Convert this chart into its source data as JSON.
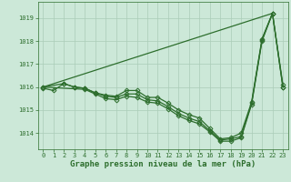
{
  "background_color": "#cce8d8",
  "grid_color": "#aaccb8",
  "line_color": "#2d6e2d",
  "title": "Graphe pression niveau de la mer (hPa)",
  "xlim": [
    -0.5,
    23.5
  ],
  "ylim": [
    1013.3,
    1019.7
  ],
  "yticks": [
    1014,
    1015,
    1016,
    1017,
    1018,
    1019
  ],
  "xticks": [
    0,
    1,
    2,
    3,
    4,
    5,
    6,
    7,
    8,
    9,
    10,
    11,
    12,
    13,
    14,
    15,
    16,
    17,
    18,
    19,
    20,
    21,
    22,
    23
  ],
  "marker_size": 2.5,
  "linewidth": 0.9,
  "title_fontsize": 6.5,
  "tick_fontsize": 5.0,
  "series1": {
    "x": [
      0,
      22
    ],
    "y": [
      1016.0,
      1019.2
    ]
  },
  "series2": {
    "x": [
      0,
      1,
      2,
      3,
      4,
      5,
      6,
      7,
      8,
      9,
      10,
      11,
      12,
      13,
      14,
      15,
      16,
      17,
      18,
      19,
      20,
      21,
      22,
      23
    ],
    "y": [
      1015.95,
      1015.85,
      1016.15,
      1016.0,
      1015.95,
      1015.75,
      1015.65,
      1015.6,
      1015.85,
      1015.85,
      1015.55,
      1015.55,
      1015.3,
      1015.0,
      1014.8,
      1014.65,
      1014.2,
      1013.75,
      1013.8,
      1014.0,
      1015.35,
      1018.1,
      1019.2,
      1016.1
    ]
  },
  "series3": {
    "x": [
      0,
      2,
      3,
      4,
      5,
      6,
      7,
      8,
      9,
      10,
      11,
      12,
      13,
      14,
      15,
      16,
      17,
      18,
      19,
      20,
      21,
      22,
      23
    ],
    "y": [
      1016.0,
      1016.15,
      1016.0,
      1015.95,
      1015.75,
      1015.6,
      1015.55,
      1015.7,
      1015.7,
      1015.45,
      1015.4,
      1015.15,
      1014.85,
      1014.65,
      1014.5,
      1014.1,
      1013.7,
      1013.75,
      1013.85,
      1015.3,
      1018.05,
      1019.2,
      1016.0
    ]
  },
  "series4": {
    "x": [
      0,
      4,
      5,
      6,
      7,
      8,
      9,
      10,
      11,
      12,
      13,
      14,
      15,
      16,
      17,
      18,
      19,
      20,
      21,
      22,
      23
    ],
    "y": [
      1016.0,
      1015.9,
      1015.7,
      1015.5,
      1015.45,
      1015.6,
      1015.55,
      1015.35,
      1015.3,
      1015.05,
      1014.75,
      1014.55,
      1014.4,
      1014.05,
      1013.65,
      1013.65,
      1013.8,
      1015.25,
      1018.0,
      1019.2,
      1016.0
    ]
  }
}
